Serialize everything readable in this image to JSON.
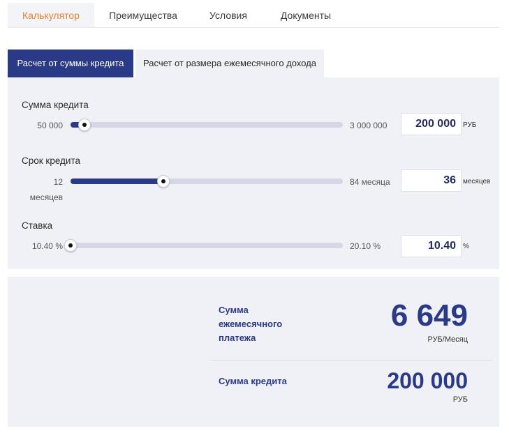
{
  "nav": {
    "tabs": [
      {
        "label": "Калькулятор"
      },
      {
        "label": "Преимущества"
      },
      {
        "label": "Условия"
      },
      {
        "label": "Документы"
      }
    ]
  },
  "modes": {
    "by_amount": "Расчет от суммы кредита",
    "by_income": "Расчет от размера ежемесячного дохода"
  },
  "fields": {
    "amount": {
      "label": "Сумма кредита",
      "min": "50 000",
      "max": "3 000 000",
      "value": "200 000",
      "unit": "РУБ",
      "position": 0.05
    },
    "term": {
      "label": "Срок кредита",
      "min_line1": "12",
      "min_line2": "месяцев",
      "max": "84 месяца",
      "value": "36",
      "unit": "месяцев",
      "position": 0.34
    },
    "rate": {
      "label": "Ставка",
      "min": "10.40 %",
      "max": "20.10 %",
      "value": "10.40",
      "unit": "%",
      "position": 0.0
    }
  },
  "result": {
    "payment_label_line1": "Сумма",
    "payment_label_line2": "ежемесячного",
    "payment_label_line3": "платежа",
    "payment_value": "6 649",
    "payment_unit": "РУБ/Месяц",
    "amount_label": "Сумма кредита",
    "amount_value": "200 000",
    "amount_unit": "РУБ"
  },
  "colors": {
    "accent": "#2a3a86",
    "active_nav": "#e8822e",
    "panel_bg": "#f0f1f6"
  }
}
